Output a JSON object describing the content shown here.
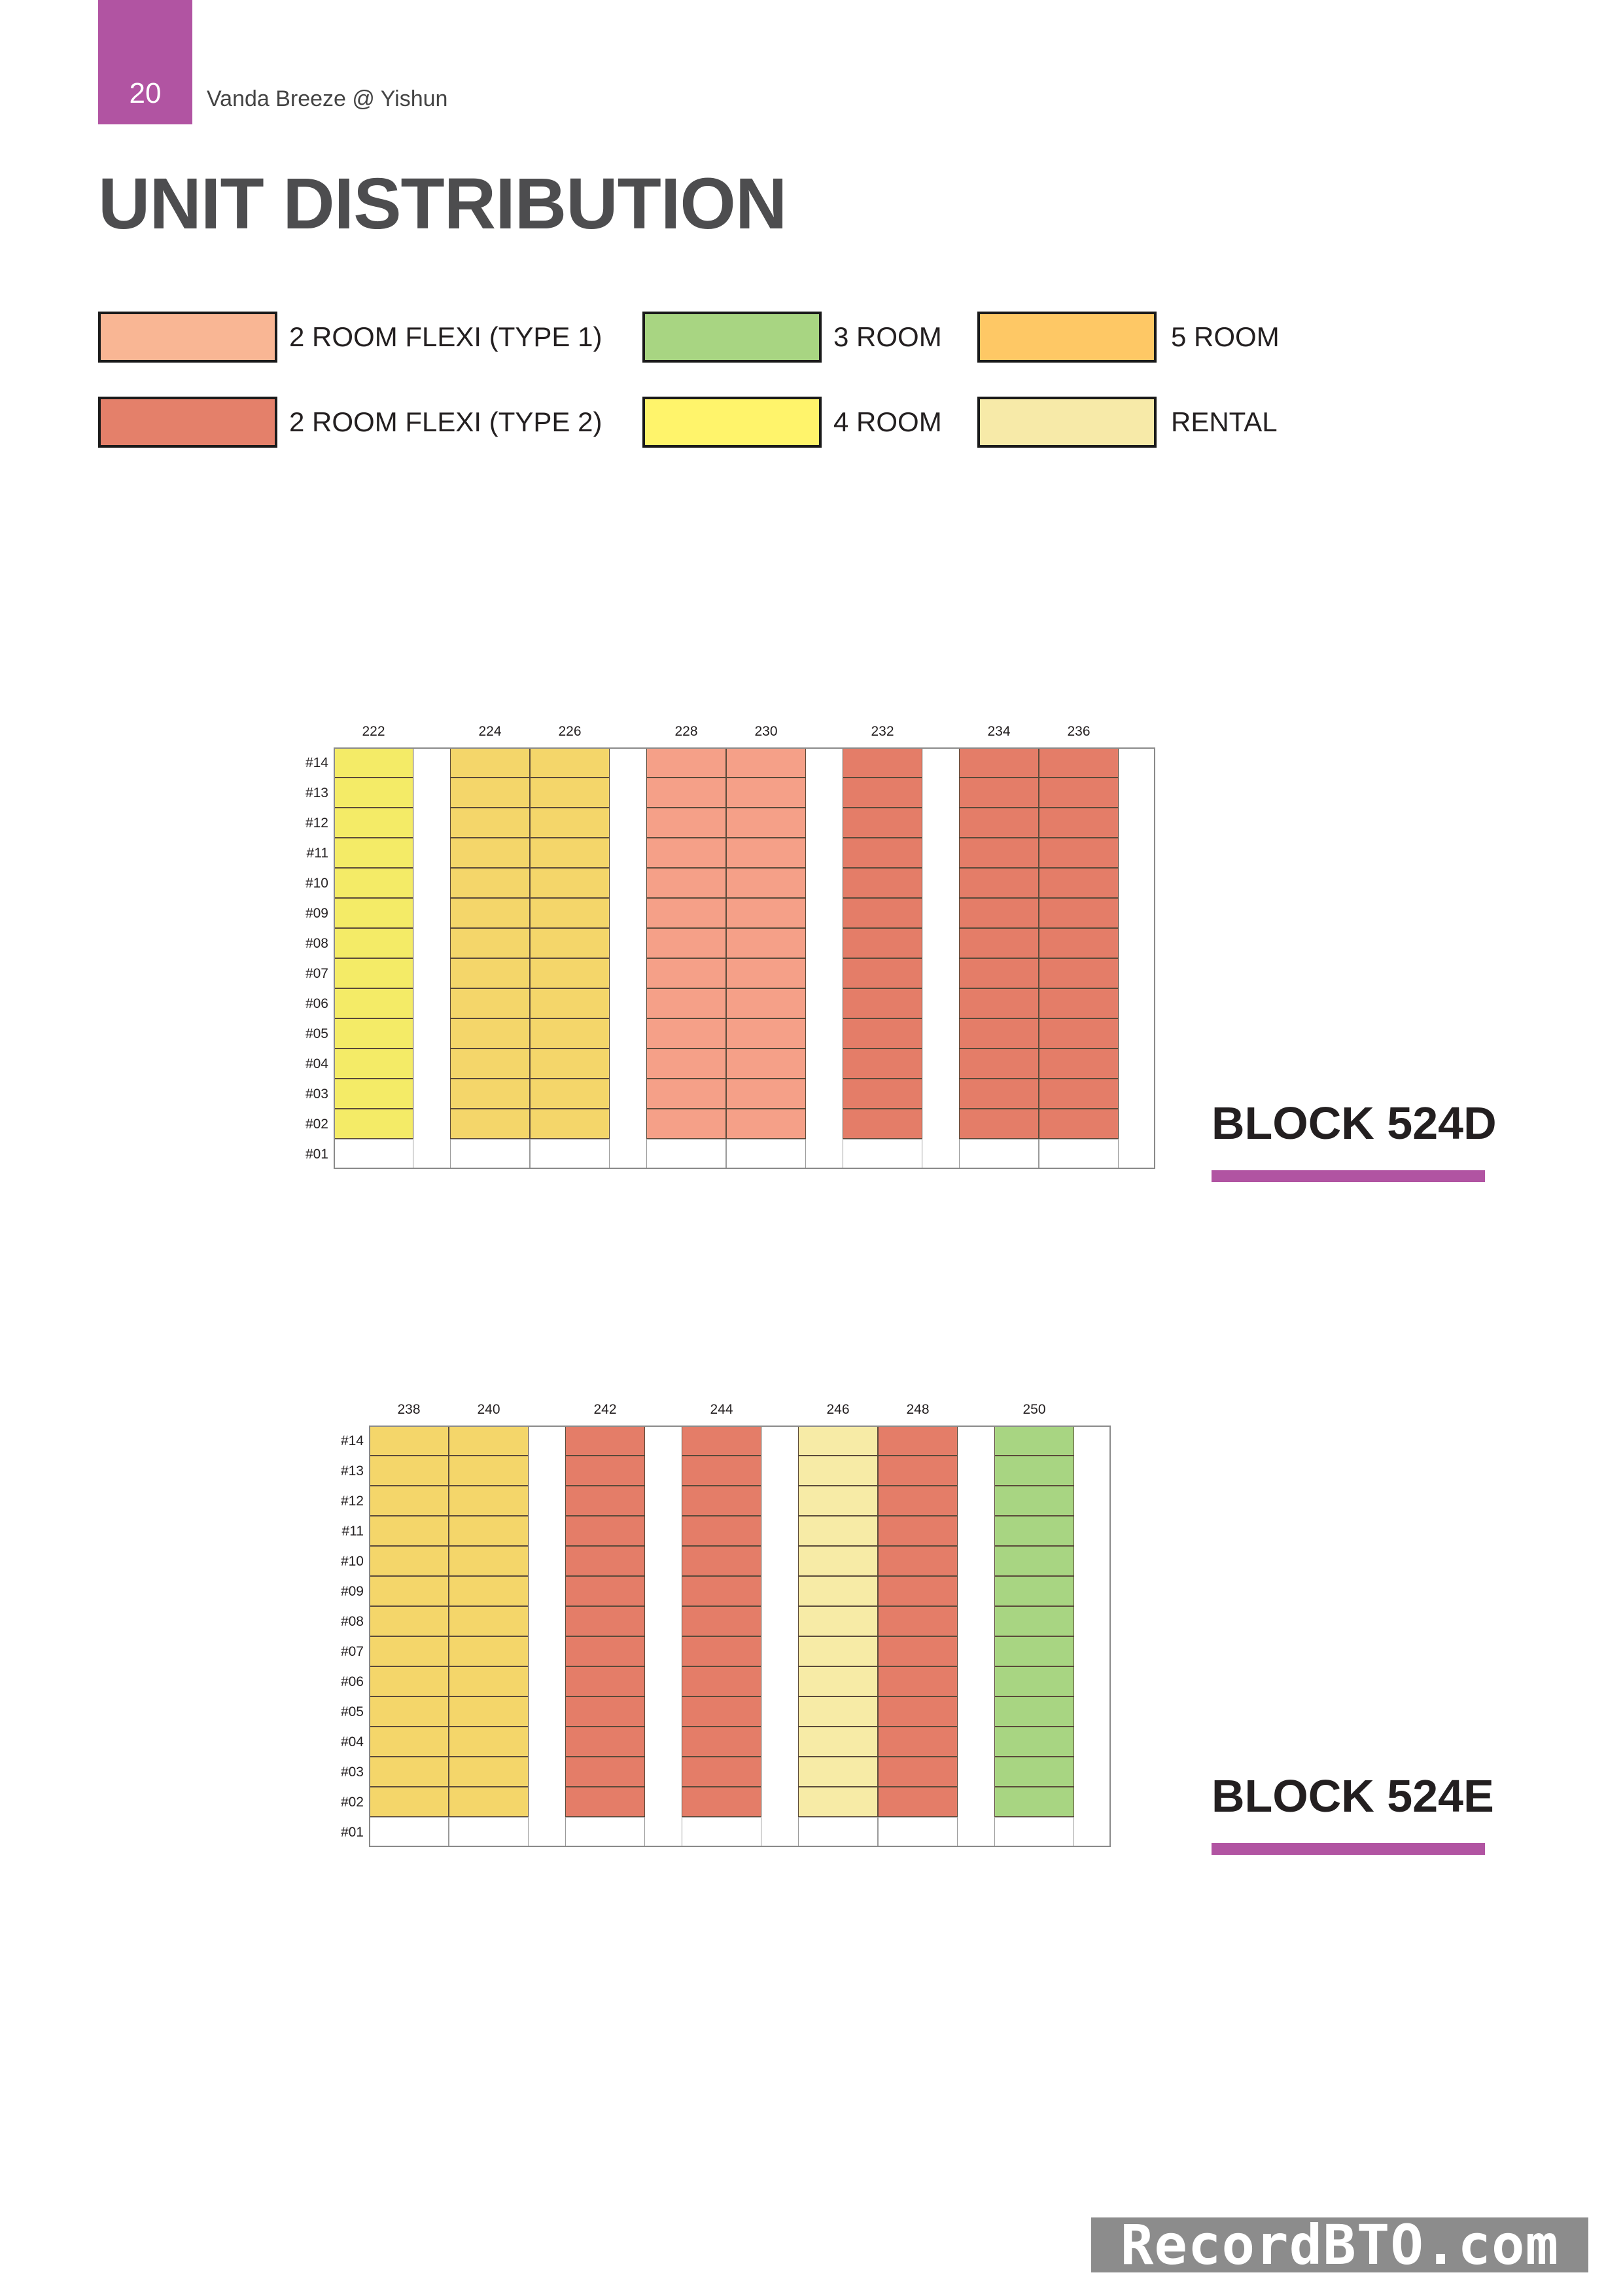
{
  "header": {
    "page_number": "20",
    "running_title": "Vanda Breeze @ Yishun"
  },
  "title": "UNIT DISTRIBUTION",
  "legend": [
    {
      "label": "2 ROOM FLEXI (TYPE 1)",
      "color": "#f9b694"
    },
    {
      "label": "3 ROOM",
      "color": "#a8d582"
    },
    {
      "label": "5 ROOM",
      "color": "#fec865"
    },
    {
      "label": "2 ROOM FLEXI (TYPE 2)",
      "color": "#e4806a"
    },
    {
      "label": "4 ROOM",
      "color": "#fff46b"
    },
    {
      "label": "RENTAL",
      "color": "#f7eaa8"
    }
  ],
  "colors": {
    "accent": "#b154a2",
    "4room": "#f4eb67",
    "5room": "#f4d66a",
    "flexi1": "#f5a088",
    "flexi2": "#e47d68",
    "3room": "#a8d582",
    "rental": "#f7eba6"
  },
  "floors": [
    "#14",
    "#13",
    "#12",
    "#11",
    "#10",
    "#09",
    "#08",
    "#07",
    "#06",
    "#05",
    "#04",
    "#03",
    "#02",
    "#01"
  ],
  "blocks": [
    {
      "name": "BLOCK 524D",
      "stacks": [
        {
          "number": "222",
          "type": "4 ROOM"
        },
        {
          "number": "",
          "type": "void"
        },
        {
          "number": "224",
          "type": "5 ROOM"
        },
        {
          "number": "226",
          "type": "5 ROOM"
        },
        {
          "number": "",
          "type": "void"
        },
        {
          "number": "228",
          "type": "2 ROOM FLEXI (TYPE 1)"
        },
        {
          "number": "230",
          "type": "2 ROOM FLEXI (TYPE 1)"
        },
        {
          "number": "",
          "type": "void"
        },
        {
          "number": "232",
          "type": "2 ROOM FLEXI (TYPE 2)"
        },
        {
          "number": "",
          "type": "void"
        },
        {
          "number": "234",
          "type": "2 ROOM FLEXI (TYPE 2)"
        },
        {
          "number": "236",
          "type": "2 ROOM FLEXI (TYPE 2)"
        },
        {
          "number": "",
          "type": "void"
        }
      ]
    },
    {
      "name": "BLOCK 524E",
      "stacks": [
        {
          "number": "238",
          "type": "5 ROOM"
        },
        {
          "number": "240",
          "type": "5 ROOM"
        },
        {
          "number": "",
          "type": "void"
        },
        {
          "number": "242",
          "type": "2 ROOM FLEXI (TYPE 2)"
        },
        {
          "number": "",
          "type": "void"
        },
        {
          "number": "244",
          "type": "2 ROOM FLEXI (TYPE 2)"
        },
        {
          "number": "",
          "type": "void"
        },
        {
          "number": "246",
          "type": "RENTAL"
        },
        {
          "number": "248",
          "type": "2 ROOM FLEXI (TYPE 2)"
        },
        {
          "number": "",
          "type": "void"
        },
        {
          "number": "250",
          "type": "3 ROOM"
        },
        {
          "number": "",
          "type": "void"
        }
      ]
    }
  ],
  "watermark": "RecordBTO.com"
}
